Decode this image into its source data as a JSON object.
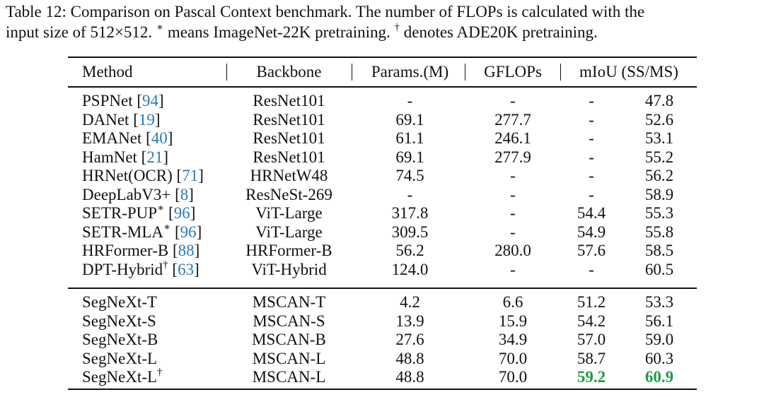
{
  "caption": {
    "line1": "Table 12: Comparison on Pascal Context benchmark. The number of FLOPs is calculated with the",
    "line2_a": "input size of 512×512.",
    "line2_star": "∗",
    "line2_b": "means ImageNet-22K pretraining.",
    "line2_dagger": "†",
    "line2_c": "denotes ADE20K pretraining."
  },
  "headers": {
    "method": "Method",
    "backbone": "Backbone",
    "params": "Params.(M)",
    "gflops": "GFLOPs",
    "miou": "mIoU (SS/MS)"
  },
  "rows": [
    {
      "method": "PSPNet",
      "sup": "",
      "ref": "94",
      "backbone": "ResNet101",
      "params": "-",
      "gflops": "-",
      "ss": "-",
      "ms": "47.8"
    },
    {
      "method": "DANet",
      "sup": "",
      "ref": "19",
      "backbone": "ResNet101",
      "params": "69.1",
      "gflops": "277.7",
      "ss": "-",
      "ms": "52.6"
    },
    {
      "method": "EMANet",
      "sup": "",
      "ref": "40",
      "backbone": "ResNet101",
      "params": "61.1",
      "gflops": "246.1",
      "ss": "-",
      "ms": "53.1"
    },
    {
      "method": "HamNet",
      "sup": "",
      "ref": "21",
      "backbone": "ResNet101",
      "params": "69.1",
      "gflops": "277.9",
      "ss": "-",
      "ms": "55.2"
    },
    {
      "method": "HRNet(OCR)",
      "sup": "",
      "ref": "71",
      "backbone": "HRNetW48",
      "params": "74.5",
      "gflops": "-",
      "ss": "-",
      "ms": "56.2"
    },
    {
      "method": "DeepLabV3+",
      "sup": "",
      "ref": "8",
      "backbone": "ResNeSt-269",
      "params": "-",
      "gflops": "-",
      "ss": "-",
      "ms": "58.9"
    },
    {
      "method": "SETR-PUP",
      "sup": "∗",
      "ref": "96",
      "backbone": "ViT-Large",
      "params": "317.8",
      "gflops": "-",
      "ss": "54.4",
      "ms": "55.3"
    },
    {
      "method": "SETR-MLA",
      "sup": "∗",
      "ref": "96",
      "backbone": "ViT-Large",
      "params": "309.5",
      "gflops": "-",
      "ss": "54.9",
      "ms": "55.8"
    },
    {
      "method": "HRFormer-B",
      "sup": "",
      "ref": "88",
      "backbone": "HRFormer-B",
      "params": "56.2",
      "gflops": "280.0",
      "ss": "57.6",
      "ms": "58.5"
    },
    {
      "method": "DPT-Hybrid",
      "sup": "†",
      "ref": "63",
      "backbone": "ViT-Hybrid",
      "params": "124.0",
      "gflops": "-",
      "ss": "-",
      "ms": "60.5"
    },
    {
      "method": "SegNeXt-T",
      "sup": "",
      "ref": "",
      "backbone": "MSCAN-T",
      "params": "4.2",
      "gflops": "6.6",
      "ss": "51.2",
      "ms": "53.3"
    },
    {
      "method": "SegNeXt-S",
      "sup": "",
      "ref": "",
      "backbone": "MSCAN-S",
      "params": "13.9",
      "gflops": "15.9",
      "ss": "54.2",
      "ms": "56.1"
    },
    {
      "method": "SegNeXt-B",
      "sup": "",
      "ref": "",
      "backbone": "MSCAN-B",
      "params": "27.6",
      "gflops": "34.9",
      "ss": "57.0",
      "ms": "59.0"
    },
    {
      "method": "SegNeXt-L",
      "sup": "",
      "ref": "",
      "backbone": "MSCAN-L",
      "params": "48.8",
      "gflops": "70.0",
      "ss": "58.7",
      "ms": "60.3"
    },
    {
      "method": "SegNeXt-L",
      "sup": "†",
      "ref": "",
      "backbone": "MSCAN-L",
      "params": "48.8",
      "gflops": "70.0",
      "ss": "59.2",
      "ms": "60.9",
      "best": true
    }
  ],
  "colors": {
    "reference": "#2a7ab8",
    "best": "#1f9a4a"
  }
}
